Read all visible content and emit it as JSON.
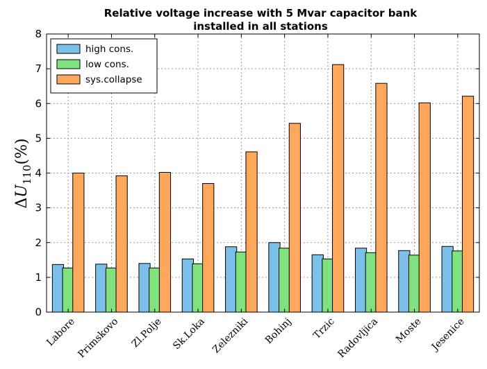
{
  "chart_data": {
    "type": "bar",
    "title_lines": [
      "Relative voltage increase with 5 Mvar capacitor bank",
      "installed in all stations"
    ],
    "xlabel": "",
    "ylabel": {
      "delta": "Δ",
      "var": "U",
      "sub": "110",
      "unit": "(%)"
    },
    "ylim": [
      0,
      8
    ],
    "yticks": [
      "0",
      "1",
      "2",
      "3",
      "4",
      "5",
      "6",
      "7",
      "8"
    ],
    "grid": true,
    "legend_position": "top-left",
    "categories": [
      "Labore",
      "Primskovo",
      "Zl.Polje",
      "Sk.Loka",
      "Zelezniki",
      "Bohinj",
      "Trzic",
      "Radovljica",
      "Moste",
      "Jesenice"
    ],
    "series": [
      {
        "name": "high cons.",
        "color": "#7cbfe8",
        "values": [
          1.37,
          1.38,
          1.4,
          1.53,
          1.88,
          2.0,
          1.65,
          1.84,
          1.77,
          1.89
        ]
      },
      {
        "name": "low cons.",
        "color": "#7fe27f",
        "values": [
          1.27,
          1.27,
          1.27,
          1.39,
          1.73,
          1.84,
          1.53,
          1.71,
          1.64,
          1.76
        ]
      },
      {
        "name": "sys.collapse",
        "color": "#ffa85c",
        "values": [
          4.0,
          3.92,
          4.02,
          3.7,
          4.61,
          5.43,
          7.12,
          6.58,
          6.02,
          6.21
        ]
      }
    ]
  }
}
